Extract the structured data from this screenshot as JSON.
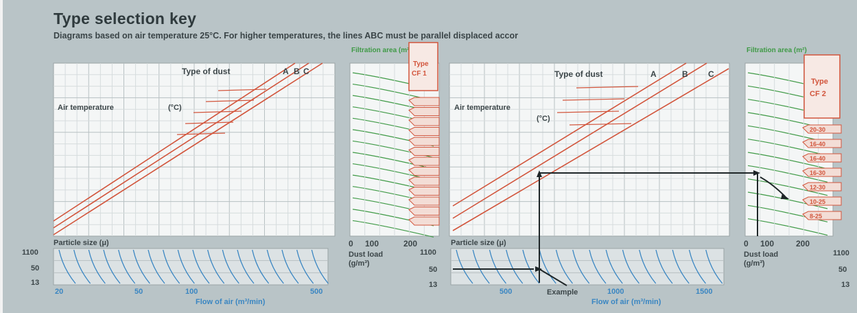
{
  "header": {
    "title": "Type selection key",
    "subtitle": "Diagrams based on air temperature 25°C. For higher temperatures, the lines ABC must be parallel displaced accor"
  },
  "colors": {
    "background": "#b9c4c7",
    "grid_panel": "#f4f6f6",
    "red_lines": "#d2553c",
    "green_lines": "#3f9a46",
    "blue_lines": "#3a86c2",
    "example_path": "#1e2628"
  },
  "left": {
    "type_of_dust_label": "Type of dust",
    "dust_letters": [
      "A",
      "B",
      "C"
    ],
    "air_temp_label": "Air temperature",
    "air_temp_unit": "(°C)",
    "filtration_label": "Filtration area (m²)",
    "type_box": [
      "Type",
      "CF 1"
    ],
    "particle_size_label": "Particle size (μ)",
    "particle_ticks": [
      "1100",
      "50",
      "13"
    ],
    "flow_ticks": [
      "20",
      "50",
      "100",
      "500"
    ],
    "flow_label": "Flow of air (m³/min)",
    "dust_ticks": [
      "0",
      "100",
      "200"
    ],
    "dust_load_label": [
      "Dust load",
      "(g/m³)"
    ]
  },
  "right": {
    "type_of_dust_label": "Type of dust",
    "dust_letters": [
      "A",
      "B",
      "C"
    ],
    "air_temp_label": "Air temperature",
    "air_temp_unit": "(°C)",
    "filtration_label": "Filtration area (m²)",
    "type_box": [
      "Type",
      "CF 2"
    ],
    "type_tags": [
      "20-30",
      "16-40",
      "16-40",
      "16-30",
      "12-30",
      "10-25",
      "8-25"
    ],
    "particle_size_label": "Particle size (μ)",
    "particle_ticks": [
      "1100",
      "50",
      "13"
    ],
    "flow_ticks": [
      "500",
      "1000",
      "1500"
    ],
    "flow_label": "Flow of air (m³/min)",
    "example_label": "Example",
    "dust_ticks": [
      "0",
      "100",
      "200"
    ],
    "dust_load_label": [
      "Dust load",
      "(g/m³)"
    ],
    "cut_ticks": [
      "1100",
      "50",
      "13"
    ]
  }
}
